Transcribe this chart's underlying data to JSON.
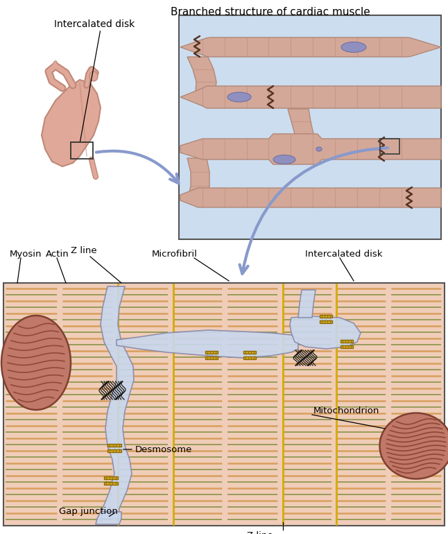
{
  "bg_color": "#ffffff",
  "top_bg": "#ccddef",
  "muscle_fill": "#d4a898",
  "muscle_edge": "#b08878",
  "muscle_stripe": "#c09080",
  "nucleus_fill": "#9090c0",
  "nucleus_edge": "#7070a0",
  "bottom_bg": "#f0cdb8",
  "sarcomere_orange": "#d09040",
  "sarcomere_green": "#7a8a3a",
  "z_line_color": "#d4aa00",
  "membrane_fill": "#b8b0cc",
  "membrane_edge": "#8888aa",
  "gap_fill": "#c8d8ee",
  "desmosome_fill": "#c8a828",
  "desmosome_edge": "#906800",
  "mito_fill_L": "#c07868",
  "mito_fill_R": "#b06858",
  "mito_crista": "#8a4030",
  "mito_edge": "#804030",
  "arrow_color": "#8899cc",
  "label_color": "#000000",
  "top_title": "Branched structure of cardiac muscle",
  "label_intercalated_top": "Intercalated disk",
  "label_myosin": "Myosin",
  "label_actin": "Actin",
  "label_zline1": "Z line",
  "label_microfibril": "Microfibril",
  "label_intercalated_bot": "Intercalated disk",
  "label_desmosome": "Desmosome",
  "label_gap": "Gap junction",
  "label_zline2": "Z line",
  "label_mito": "Mitochondrion",
  "heart_fill": "#e0a898",
  "heart_edge": "#c08878",
  "heart_dark": "#cc8878"
}
